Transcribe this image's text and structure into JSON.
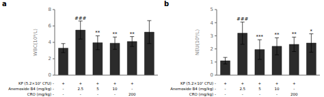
{
  "chart_data": [
    {
      "type": "bar",
      "title": "a",
      "y_label": "WBC(10⁹/L)",
      "categories": [
        null,
        null,
        null,
        null,
        null,
        null
      ],
      "values": [
        3.3,
        5.5,
        3.95,
        3.9,
        4.1,
        5.25
      ],
      "errors": [
        0.55,
        1.1,
        0.85,
        0.75,
        0.6,
        1.4
      ],
      "annotations": [
        null,
        "###",
        "**",
        "**",
        "**",
        null
      ],
      "color": "#2b2b2b",
      "ylim": [
        0,
        8
      ],
      "yticks": [
        0,
        2,
        4,
        6,
        8
      ],
      "tick_labels": "y",
      "table": [
        {
          "label": "KP (5.2×10⁷ CFU) -",
          "values": [
            "+",
            "+",
            "+",
            "+",
            "+",
            null
          ]
        },
        {
          "label": "Anemoside B4 (mg/kg) -",
          "values": [
            "-",
            "2.5",
            "5",
            "10",
            "-",
            null
          ]
        },
        {
          "label": "CRO (mg/kg) -",
          "values": [
            "-",
            "-",
            "-",
            "-",
            "200",
            null
          ]
        }
      ]
    },
    {
      "type": "bar",
      "title": "b",
      "y_label": "NEU(10⁹/L)",
      "categories": [
        null,
        null,
        null,
        null,
        null,
        null
      ],
      "values": [
        1.1,
        3.2,
        1.95,
        2.2,
        2.35,
        2.45
      ],
      "errors": [
        0.25,
        0.85,
        0.75,
        0.65,
        0.55,
        0.7
      ],
      "annotations": [
        null,
        "###",
        "***",
        "**",
        "**",
        "*"
      ],
      "color": "#2b2b2b",
      "ylim": [
        0,
        5
      ],
      "yticks": [
        0,
        1,
        2,
        3,
        4,
        5
      ],
      "tick_labels": "y",
      "table": [
        {
          "label": "KP (5.2×10⁷ CFU) -",
          "values": [
            "+",
            "+",
            "+",
            "+",
            "+",
            null
          ]
        },
        {
          "label": "Anemoside B4 (mg/kg) -",
          "values": [
            "-",
            "2.5",
            "5",
            "10",
            "-",
            null
          ]
        },
        {
          "label": "CRO (mg/kg) -",
          "values": [
            "-",
            "-",
            "-",
            "-",
            "200",
            null
          ]
        }
      ]
    }
  ]
}
